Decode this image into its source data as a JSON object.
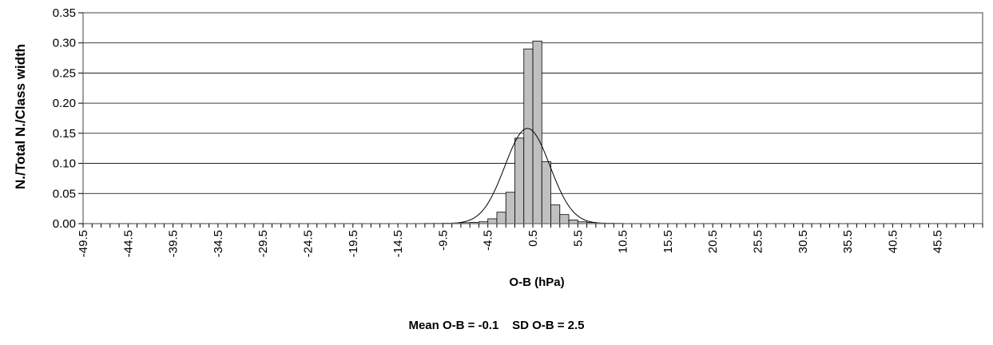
{
  "chart_data": {
    "type": "bar",
    "title": "",
    "xlabel": "O-B (hPa)",
    "ylabel": "N./Total N./Class width",
    "ylim": [
      0,
      0.35
    ],
    "yticks": [
      "0.00",
      "0.05",
      "0.10",
      "0.15",
      "0.20",
      "0.25",
      "0.30",
      "0.35"
    ],
    "xticks": [
      "-49.5",
      "-44.5",
      "-39.5",
      "-34.5",
      "-29.5",
      "-24.5",
      "-19.5",
      "-14.5",
      "-9.5",
      "-4.5",
      "0.5",
      "5.5",
      "10.5",
      "15.5",
      "20.5",
      "25.5",
      "30.5",
      "35.5",
      "40.5",
      "45.5"
    ],
    "bin_start": -49.5,
    "bin_width": 1,
    "bar_color": "#c0c0c0",
    "grid": true,
    "bars": [
      {
        "x": -11.5,
        "y": 0.0005
      },
      {
        "x": -10.5,
        "y": 0.0005
      },
      {
        "x": -9.5,
        "y": 0.0008
      },
      {
        "x": -8.5,
        "y": 0.001
      },
      {
        "x": -7.5,
        "y": 0.0015
      },
      {
        "x": -6.5,
        "y": 0.002
      },
      {
        "x": -5.5,
        "y": 0.003
      },
      {
        "x": -4.5,
        "y": 0.008
      },
      {
        "x": -3.5,
        "y": 0.019
      },
      {
        "x": -2.5,
        "y": 0.052
      },
      {
        "x": -1.5,
        "y": 0.142
      },
      {
        "x": -0.5,
        "y": 0.29
      },
      {
        "x": 0.5,
        "y": 0.303
      },
      {
        "x": 1.5,
        "y": 0.103
      },
      {
        "x": 2.5,
        "y": 0.031
      },
      {
        "x": 3.5,
        "y": 0.015
      },
      {
        "x": 4.5,
        "y": 0.006
      },
      {
        "x": 5.5,
        "y": 0.003
      },
      {
        "x": 6.5,
        "y": 0.002
      },
      {
        "x": 7.5,
        "y": 0.001
      },
      {
        "x": 8.5,
        "y": 0.0008
      },
      {
        "x": 9.5,
        "y": 0.0005
      }
    ],
    "normal_curve": {
      "mean": -0.1,
      "sd": 2.5,
      "peak": 0.158
    }
  },
  "stats_line": "Mean O-B = -0.1    SD O-B = 2.5"
}
